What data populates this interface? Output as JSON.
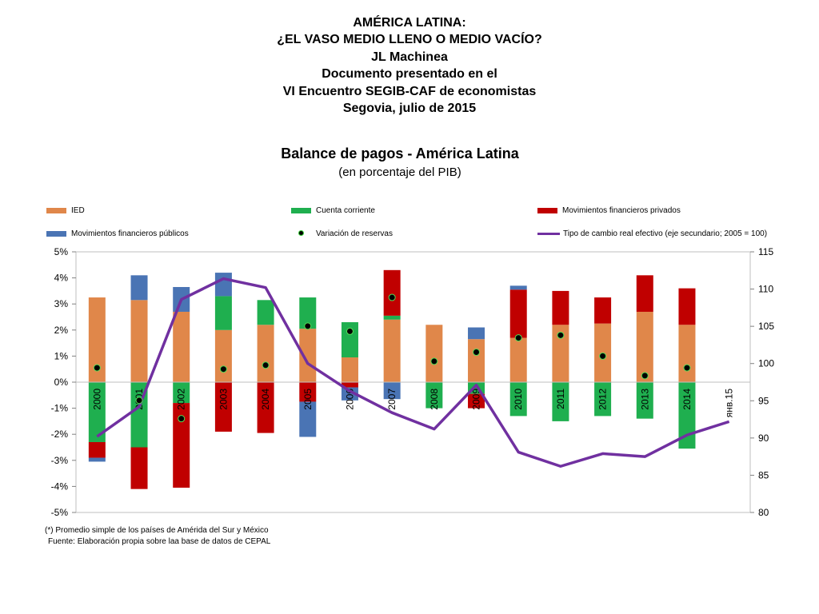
{
  "header": {
    "lines": [
      "AMÉRICA LATINA:",
      "¿EL VASO MEDIO LLENO O MEDIO VACÍO?",
      "JL Machinea",
      "Documento presentado en el",
      "VI Encuentro SEGIB-CAF de economistas",
      "Segovia, julio de 2015"
    ]
  },
  "notes": {
    "footnote": "(*) Promedio simple de los países de Amérida del Sur y México",
    "source": "Fuente: Elaboración propia sobre laa base de datos de CEPAL"
  },
  "chart_data": {
    "type": "bar",
    "title": "Balance de pagos - América Latina",
    "subtitle": "(en porcentaje del PIB)",
    "categories": [
      "2000",
      "2001",
      "2002",
      "2003",
      "2004",
      "2005",
      "2006",
      "2007",
      "2008",
      "2009",
      "2010",
      "2011",
      "2012",
      "2013",
      "2014",
      "янв.15"
    ],
    "ylim": [
      -5,
      5
    ],
    "y_ticks": [
      "5%",
      "4%",
      "3%",
      "2%",
      "1%",
      "0%",
      "-1%",
      "-2%",
      "-3%",
      "-4%",
      "-5%"
    ],
    "y2lim": [
      80,
      115
    ],
    "y2_ticks": [
      "115",
      "110",
      "105",
      "100",
      "95",
      "90",
      "85",
      "80"
    ],
    "legend_placement": "top",
    "grid": false,
    "colors": {
      "ied": "#e0874a",
      "cuenta": "#1faf4f",
      "privados": "#c00000",
      "publicos": "#4a74b4",
      "reservas": "#000000",
      "tipo": "#7030a0"
    },
    "series": [
      {
        "name": "IED",
        "key": "ied",
        "kind": "bar",
        "values": [
          3.25,
          3.15,
          2.7,
          2.0,
          2.2,
          2.05,
          0.95,
          2.4,
          2.2,
          1.65,
          1.7,
          2.2,
          2.25,
          2.7,
          2.2,
          null
        ]
      },
      {
        "name": "Cuenta corriente",
        "key": "cuenta",
        "kind": "bar",
        "values": [
          -2.3,
          -2.5,
          -0.8,
          1.3,
          0.95,
          1.2,
          1.35,
          0.15,
          -1.0,
          -0.45,
          -1.3,
          -1.5,
          -1.3,
          -1.4,
          -2.55,
          null
        ]
      },
      {
        "name": "Movimientos financieros privados",
        "key": "privados",
        "kind": "bar",
        "values": [
          -0.6,
          -1.6,
          -3.25,
          -1.9,
          -1.95,
          -0.75,
          -0.2,
          1.75,
          0.0,
          -0.55,
          1.85,
          1.3,
          1.0,
          1.4,
          1.4,
          null
        ]
      },
      {
        "name": "Movimientos financieros públicos",
        "key": "publicos",
        "kind": "bar",
        "values": [
          -0.15,
          0.95,
          0.95,
          0.9,
          0.0,
          -1.35,
          -0.5,
          -0.65,
          0.0,
          0.45,
          0.15,
          0.0,
          0.0,
          0.0,
          0.0,
          null
        ]
      },
      {
        "name": "Variación de reservas",
        "key": "reservas",
        "kind": "marker",
        "values": [
          0.55,
          -0.7,
          -1.4,
          0.5,
          0.65,
          2.15,
          1.95,
          3.25,
          0.8,
          1.15,
          1.7,
          1.8,
          1.0,
          0.25,
          0.55,
          null
        ]
      },
      {
        "name": "Tipo de cambio real efectivo (eje secundario; 2005 = 100)",
        "key": "tipo",
        "kind": "line",
        "axis": "secondary",
        "values": [
          90.2,
          94.2,
          108.6,
          111.4,
          110.2,
          100.0,
          96.3,
          93.4,
          91.2,
          97.1,
          88.1,
          86.2,
          87.9,
          87.5,
          90.4,
          92.2
        ]
      }
    ]
  }
}
